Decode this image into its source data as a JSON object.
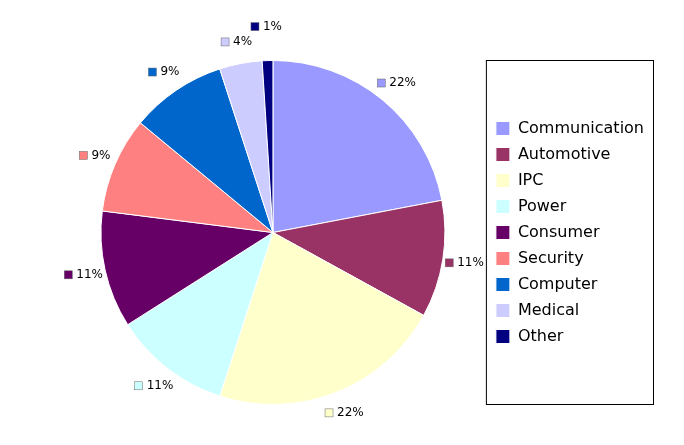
{
  "chart_data": {
    "type": "pie",
    "categories": [
      "Communication",
      "Automotive",
      "IPC",
      "Power",
      "Consumer",
      "Security",
      "Computer",
      "Medical",
      "Other"
    ],
    "values": [
      22,
      11,
      22,
      11,
      11,
      9,
      9,
      4,
      1
    ],
    "value_labels": [
      "22%",
      "11%",
      "22%",
      "11%",
      "11%",
      "9%",
      "9%",
      "4%",
      "1%"
    ],
    "colors": [
      "#9999ff",
      "#993366",
      "#ffffcc",
      "#ccffff",
      "#660066",
      "#ff8080",
      "#0066cc",
      "#ccccff",
      "#000080"
    ],
    "legend": "right",
    "data_labels": true
  }
}
